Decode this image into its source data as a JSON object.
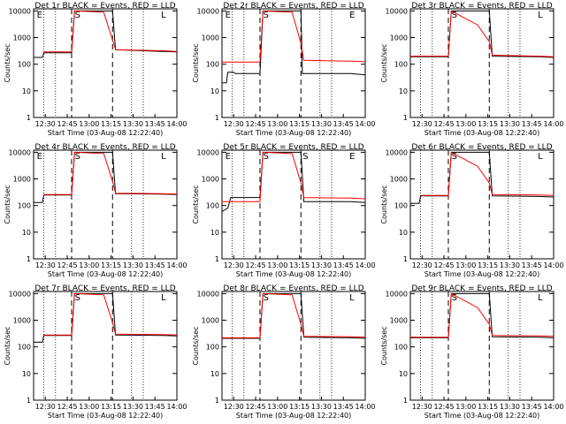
{
  "figure": {
    "x_ticks": [
      "12:30",
      "12:45",
      "13:00",
      "13:15",
      "13:30",
      "13:45",
      "14:00"
    ],
    "y_ticks": [
      "1",
      "10",
      "100",
      "1000",
      "10000"
    ]
  },
  "chart_data": [
    {
      "type": "line",
      "title": "Det 1r BLACK = Events, RED = LLD",
      "xlabel": "Start Time (03-Aug-08 12:22:40)",
      "ylabel": "Counts/sec",
      "xlim": [
        "12:22",
        "14:00"
      ],
      "ylim": [
        1,
        12000
      ],
      "yscale": "log",
      "grid": false,
      "markers": [
        "E",
        "S",
        "L"
      ],
      "series": [
        {
          "name": "Events",
          "color": "#000000",
          "x": [
            "12:22",
            "12:28",
            "12:29",
            "12:48",
            "12:50",
            "13:16",
            "13:18",
            "13:50",
            "14:00"
          ],
          "y": [
            180,
            180,
            270,
            270,
            10000,
            10000,
            350,
            300,
            290
          ]
        },
        {
          "name": "LLD",
          "color": "#ff0000",
          "x": [
            "12:29",
            "12:48",
            "12:50",
            "13:10",
            "13:16",
            "13:18",
            "13:50",
            "14:00"
          ],
          "y": [
            290,
            290,
            10000,
            9000,
            800,
            350,
            320,
            300
          ]
        }
      ]
    },
    {
      "type": "line",
      "title": "Det 2r BLACK = Events, RED = LLD",
      "xlabel": "Start Time (03-Aug-08 12:22:40)",
      "ylabel": "Counts/sec",
      "xlim": [
        "12:22",
        "14:00"
      ],
      "ylim": [
        1,
        12000
      ],
      "yscale": "log",
      "grid": false,
      "markers": [
        "E",
        "S",
        "E"
      ],
      "series": [
        {
          "name": "Events",
          "color": "#000000",
          "x": [
            "12:22",
            "12:25",
            "12:26",
            "12:30",
            "12:31",
            "12:48",
            "12:50",
            "13:16",
            "13:17",
            "13:50",
            "14:00"
          ],
          "y": [
            20,
            20,
            50,
            50,
            45,
            45,
            10000,
            10000,
            45,
            45,
            40
          ]
        },
        {
          "name": "LLD",
          "color": "#ff0000",
          "x": [
            "12:22",
            "12:48",
            "12:50",
            "13:10",
            "13:16",
            "13:18",
            "13:50",
            "14:00"
          ],
          "y": [
            120,
            120,
            10000,
            9000,
            600,
            140,
            130,
            125
          ]
        }
      ]
    },
    {
      "type": "line",
      "title": "Det 3r BLACK = Events, RED = LLD",
      "xlabel": "Start Time (03-Aug-08 12:22:40)",
      "ylabel": "Counts/sec",
      "xlim": [
        "12:22",
        "14:00"
      ],
      "ylim": [
        1,
        12000
      ],
      "yscale": "log",
      "grid": false,
      "markers": [
        "S",
        "L"
      ],
      "series": [
        {
          "name": "Events",
          "color": "#000000",
          "x": [
            "12:22",
            "12:48",
            "12:50",
            "13:16",
            "13:18",
            "13:50",
            "14:00"
          ],
          "y": [
            190,
            190,
            10000,
            10000,
            200,
            190,
            180
          ]
        },
        {
          "name": "LLD",
          "color": "#ff0000",
          "x": [
            "12:22",
            "12:48",
            "12:50",
            "13:08",
            "13:16",
            "13:18",
            "13:50",
            "14:00"
          ],
          "y": [
            200,
            200,
            10000,
            3000,
            700,
            220,
            200,
            190
          ]
        }
      ]
    },
    {
      "type": "line",
      "title": "Det 4r BLACK = Events, RED = LLD",
      "xlabel": "Start Time (03-Aug-08 12:22:40)",
      "ylabel": "Counts/sec",
      "xlim": [
        "12:22",
        "14:00"
      ],
      "ylim": [
        1,
        12000
      ],
      "yscale": "log",
      "grid": false,
      "markers": [
        "E",
        "S",
        "L"
      ],
      "series": [
        {
          "name": "Events",
          "color": "#000000",
          "x": [
            "12:22",
            "12:28",
            "12:29",
            "12:48",
            "12:50",
            "13:16",
            "13:18",
            "13:50",
            "14:00"
          ],
          "y": [
            130,
            130,
            250,
            250,
            10000,
            10000,
            280,
            270,
            260
          ]
        },
        {
          "name": "LLD",
          "color": "#ff0000",
          "x": [
            "12:29",
            "12:48",
            "12:50",
            "13:10",
            "13:16",
            "13:18",
            "13:50",
            "14:00"
          ],
          "y": [
            260,
            260,
            10000,
            9000,
            800,
            290,
            280,
            270
          ]
        }
      ]
    },
    {
      "type": "line",
      "title": "Det 5r BLACK = Events, RED = LLD",
      "xlabel": "Start Time (03-Aug-08 12:22:40)",
      "ylabel": "Counts/sec",
      "xlim": [
        "12:22",
        "14:00"
      ],
      "ylim": [
        1,
        12000
      ],
      "yscale": "log",
      "grid": false,
      "markers": [
        "E",
        "S",
        "S",
        "E"
      ],
      "series": [
        {
          "name": "Events",
          "color": "#000000",
          "x": [
            "12:22",
            "12:26",
            "12:28",
            "12:48",
            "12:50",
            "13:16",
            "13:18",
            "13:50",
            "14:00"
          ],
          "y": [
            60,
            80,
            200,
            200,
            10000,
            10000,
            140,
            140,
            130
          ]
        },
        {
          "name": "LLD",
          "color": "#ff0000",
          "x": [
            "12:22",
            "12:48",
            "12:50",
            "13:10",
            "13:16",
            "13:18",
            "13:50",
            "14:00"
          ],
          "y": [
            140,
            140,
            10000,
            9000,
            700,
            200,
            190,
            180
          ]
        }
      ]
    },
    {
      "type": "line",
      "title": "Det 6r BLACK = Events, RED = LLD",
      "xlabel": "Start Time (03-Aug-08 12:22:40)",
      "ylabel": "Counts/sec",
      "xlim": [
        "12:22",
        "14:00"
      ],
      "ylim": [
        1,
        12000
      ],
      "yscale": "log",
      "grid": false,
      "markers": [
        "S",
        "L"
      ],
      "series": [
        {
          "name": "Events",
          "color": "#000000",
          "x": [
            "12:22",
            "12:28",
            "12:29",
            "12:48",
            "12:50",
            "13:16",
            "13:18",
            "13:50",
            "14:00"
          ],
          "y": [
            120,
            120,
            230,
            230,
            10000,
            10000,
            230,
            220,
            210
          ]
        },
        {
          "name": "LLD",
          "color": "#ff0000",
          "x": [
            "12:29",
            "12:48",
            "12:50",
            "13:08",
            "13:16",
            "13:18",
            "13:50",
            "14:00"
          ],
          "y": [
            240,
            240,
            10000,
            3000,
            700,
            260,
            250,
            240
          ]
        }
      ]
    },
    {
      "type": "line",
      "title": "Det 7r BLACK = Events, RED = LLD",
      "xlabel": "Start Time (03-Aug-08 12:22:40)",
      "ylabel": "Counts/sec",
      "xlim": [
        "12:22",
        "14:00"
      ],
      "ylim": [
        1,
        12000
      ],
      "yscale": "log",
      "grid": false,
      "markers": [
        "S",
        "L"
      ],
      "series": [
        {
          "name": "Events",
          "color": "#000000",
          "x": [
            "12:22",
            "12:28",
            "12:29",
            "12:48",
            "12:50",
            "13:16",
            "13:18",
            "13:50",
            "14:00"
          ],
          "y": [
            150,
            150,
            270,
            270,
            10000,
            10000,
            280,
            270,
            260
          ]
        },
        {
          "name": "LLD",
          "color": "#ff0000",
          "x": [
            "12:29",
            "12:48",
            "12:50",
            "13:10",
            "13:16",
            "13:18",
            "13:50",
            "14:00"
          ],
          "y": [
            280,
            280,
            10000,
            9000,
            800,
            300,
            290,
            280
          ]
        }
      ]
    },
    {
      "type": "line",
      "title": "Det 8r BLACK = Events, RED = LLD",
      "xlabel": "Start Time (03-Aug-08 12:22:40)",
      "ylabel": "Counts/sec",
      "xlim": [
        "12:22",
        "14:00"
      ],
      "ylim": [
        1,
        12000
      ],
      "yscale": "log",
      "grid": false,
      "markers": [
        "S",
        "L"
      ],
      "series": [
        {
          "name": "Events",
          "color": "#000000",
          "x": [
            "12:22",
            "12:48",
            "12:50",
            "13:16",
            "13:18",
            "13:50",
            "14:00"
          ],
          "y": [
            210,
            210,
            10000,
            10000,
            230,
            220,
            210
          ]
        },
        {
          "name": "LLD",
          "color": "#ff0000",
          "x": [
            "12:22",
            "12:48",
            "12:50",
            "13:10",
            "13:16",
            "13:18",
            "13:50",
            "14:00"
          ],
          "y": [
            220,
            220,
            10000,
            9000,
            700,
            250,
            240,
            230
          ]
        }
      ]
    },
    {
      "type": "line",
      "title": "Det 9r BLACK = Events, RED = LLD",
      "xlabel": "Start Time (03-Aug-08 12:22:40)",
      "ylabel": "Counts/sec",
      "xlim": [
        "12:22",
        "14:00"
      ],
      "ylim": [
        1,
        12000
      ],
      "yscale": "log",
      "grid": false,
      "markers": [
        "S",
        "L"
      ],
      "series": [
        {
          "name": "Events",
          "color": "#000000",
          "x": [
            "12:22",
            "12:48",
            "12:50",
            "13:16",
            "13:18",
            "13:50",
            "14:00"
          ],
          "y": [
            220,
            220,
            10000,
            10000,
            240,
            230,
            220
          ]
        },
        {
          "name": "LLD",
          "color": "#ff0000",
          "x": [
            "12:22",
            "12:48",
            "12:50",
            "13:08",
            "13:16",
            "13:18",
            "13:50",
            "14:00"
          ],
          "y": [
            230,
            230,
            10000,
            3000,
            700,
            270,
            260,
            250
          ]
        }
      ]
    }
  ]
}
